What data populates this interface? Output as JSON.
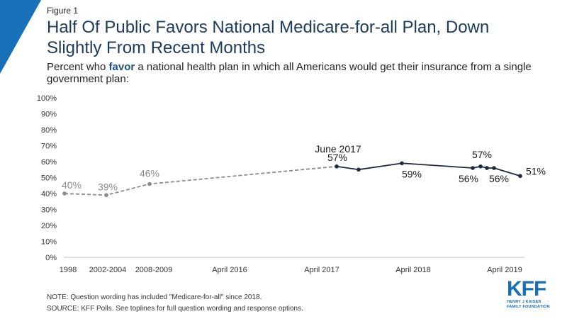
{
  "header": {
    "figure_label": "Figure 1",
    "title": "Half Of Public Favors National Medicare-for-all Plan, Down Slightly From Recent Months",
    "subtitle_pre": "Percent who ",
    "subtitle_emphasis": "favor",
    "subtitle_post": " a national health plan in which all Americans would get their insurance from a single government plan:"
  },
  "colors": {
    "accent": "#1770b8",
    "title": "#1b3a5c",
    "solid_series": "#1b2a41",
    "dashed_series": "#8c8c8c"
  },
  "chart_data": {
    "type": "line",
    "ylim": [
      0,
      100
    ],
    "yticks": [
      "0%",
      "10%",
      "20%",
      "30%",
      "40%",
      "50%",
      "60%",
      "70%",
      "80%",
      "90%",
      "100%"
    ],
    "xtick_labels": [
      "1998",
      "2002-2004",
      "2008-2009",
      "April 2016",
      "April 2017",
      "April 2018",
      "April 2019"
    ],
    "series": [
      {
        "style": "dashed",
        "points": [
          {
            "x": "1998",
            "y": 40,
            "label": "40%"
          },
          {
            "x": "2002-2004",
            "y": 39,
            "label": "39%"
          },
          {
            "x": "2008-2009",
            "y": 46,
            "label": "46%"
          },
          {
            "x": "June 2017",
            "y": 57,
            "label": ""
          }
        ]
      },
      {
        "style": "solid",
        "points": [
          {
            "x": "June 2017",
            "y": 57,
            "label": "57%"
          },
          {
            "x": "Oct 2017",
            "y": 55,
            "label": ""
          },
          {
            "x": "Mar 2018",
            "y": 59,
            "label": "59%"
          },
          {
            "x": "Nov 2018",
            "y": 56,
            "label": "56%"
          },
          {
            "x": "Jan 2019",
            "y": 57,
            "label": "57%"
          },
          {
            "x": "Feb 2019",
            "y": 56,
            "label": ""
          },
          {
            "x": "Mar 2019",
            "y": 56,
            "label": "56%"
          },
          {
            "x": "Apr 2019",
            "y": 51,
            "label": "51%"
          }
        ]
      }
    ],
    "annotations": [
      {
        "text": "June 2017"
      }
    ]
  },
  "footer": {
    "note": "NOTE: Question wording has included \"Medicare-for-all\" since 2018.",
    "source": "SOURCE: KFF Polls. See toplines for full question wording and response options.",
    "logo_mark": "KFF",
    "logo_line1": "HENRY J KAISER",
    "logo_line2": "FAMILY FOUNDATION"
  }
}
